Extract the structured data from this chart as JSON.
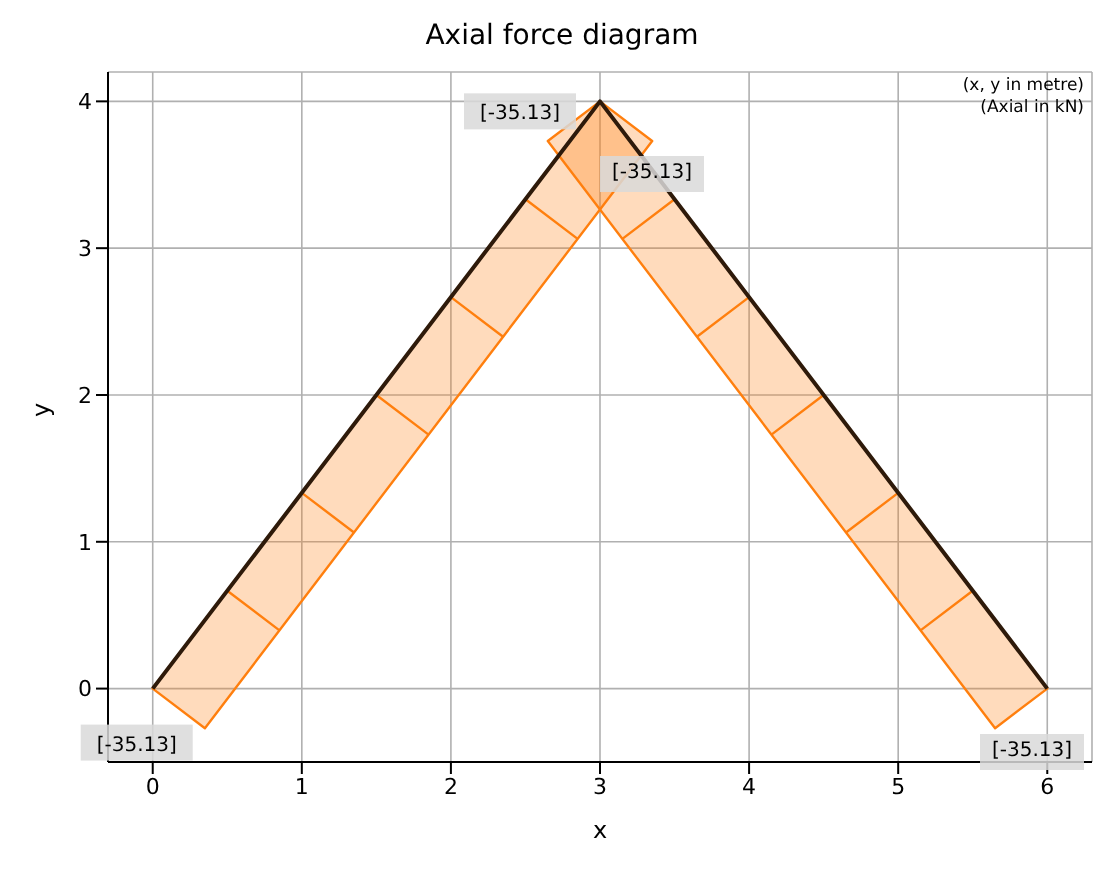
{
  "chart_data": {
    "type": "line",
    "title": "Axial force diagram",
    "xlabel": "x",
    "ylabel": "y",
    "xlim": [
      -0.3,
      6.3
    ],
    "xticks": [
      0,
      1,
      2,
      3,
      4,
      5,
      6
    ],
    "ylim": [
      -0.5,
      4.2
    ],
    "yticks": [
      0,
      1,
      2,
      3,
      4
    ],
    "grid": true,
    "legend": false,
    "marker": "none",
    "series": [
      {
        "type": "area",
        "color": "#ff7f0e",
        "x": [
          0,
          3,
          3.35,
          0.35,
          0
        ],
        "values": [
          0,
          4,
          3.73,
          -0.27,
          0
        ]
      },
      {
        "type": "area",
        "color": "#ff7f0e",
        "x": [
          3,
          6,
          5.65,
          2.65,
          3
        ],
        "values": [
          4,
          0,
          -0.27,
          3.73,
          4
        ]
      },
      {
        "color": "#2e1a0a",
        "x": [
          0,
          3,
          6
        ],
        "values": [
          0,
          4,
          0
        ]
      }
    ],
    "annotations": [
      {
        "text": "[-35.13]",
        "x": 0,
        "y": 0
      },
      {
        "text": "[-35.13]",
        "x": 3,
        "y": 4
      },
      "[-35.13]",
      "[-35.13]",
      "(x, y in metre)",
      "(Axial in kN)"
    ]
  }
}
